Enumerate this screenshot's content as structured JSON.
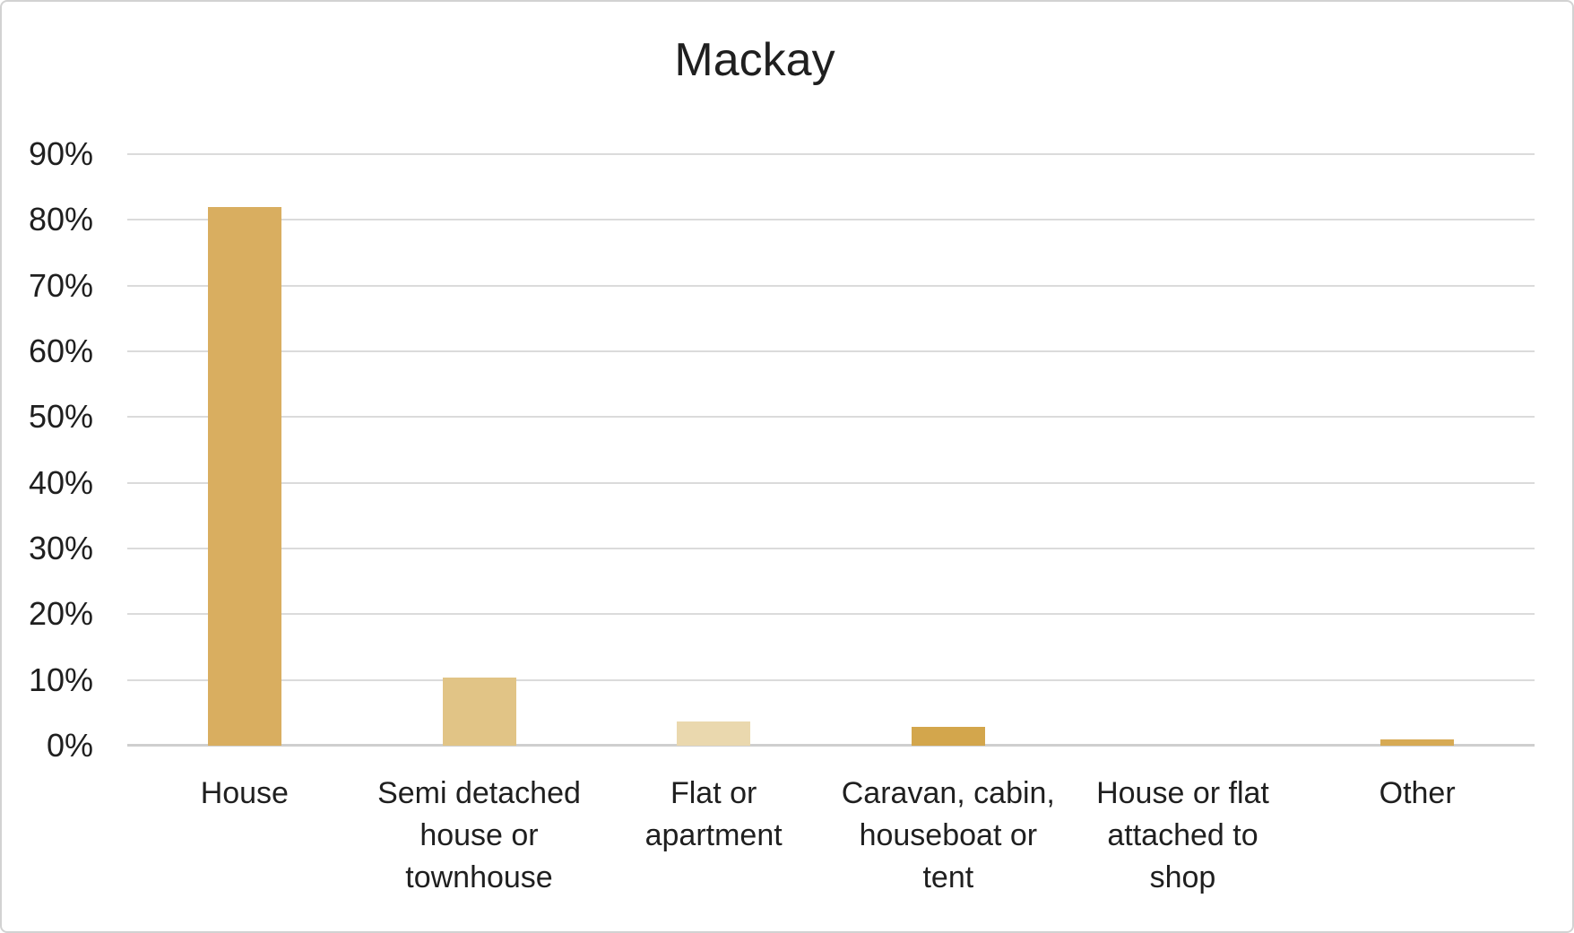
{
  "page": {
    "background": "#FFFFFF",
    "frame_border_color": "#D2D2D2"
  },
  "chart_data": {
    "type": "bar",
    "title": "Mackay",
    "categories": [
      "House",
      "Semi detached house or townhouse",
      "Flat or apartment",
      "Caravan, cabin, houseboat or tent",
      "House or flat attached to shop",
      "Other"
    ],
    "category_label_lines": [
      [
        "House"
      ],
      [
        "Semi detached",
        "house or",
        "townhouse"
      ],
      [
        "Flat or",
        "apartment"
      ],
      [
        "Caravan, cabin,",
        "houseboat or",
        "tent"
      ],
      [
        "House or flat",
        "attached to",
        "shop"
      ],
      [
        "Other"
      ]
    ],
    "values": [
      82,
      10.3,
      3.7,
      2.9,
      0,
      0.9
    ],
    "values_unit": "%",
    "bar_colors": [
      "#D9AE60",
      "#E1C486",
      "#EAD8AE",
      "#D3A64C",
      "#D9AE60",
      "#D7AA54"
    ],
    "xlabel": "",
    "ylabel": "",
    "ylim": [
      0,
      90
    ],
    "ytick_step": 10,
    "ytick_labels": [
      "0%",
      "10%",
      "20%",
      "30%",
      "40%",
      "50%",
      "60%",
      "70%",
      "80%",
      "90%"
    ],
    "grid": true,
    "gridline_color": "#DBDBDB",
    "axis_line_color": "#CFCFCF",
    "legend": false,
    "text_color": "#1F1F1F"
  }
}
